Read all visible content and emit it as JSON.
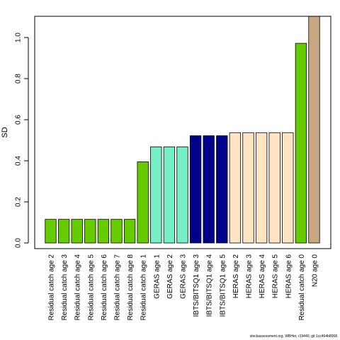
{
  "chart_data": {
    "type": "bar",
    "ylabel": "SD",
    "xlabel": "",
    "ylim": [
      0,
      1.1
    ],
    "yticks": [
      0.0,
      0.2,
      0.4,
      0.6,
      0.8,
      1.0
    ],
    "ytick_labels": [
      "0.0",
      "0.2",
      "0.4",
      "0.6",
      "0.8",
      "1.0"
    ],
    "grid": false,
    "categories": [
      "Residual catch age 2",
      "Residual catch age 3",
      "Residual catch age 4",
      "Residual catch age 5",
      "Residual catch age 6",
      "Residual catch age 7",
      "Residual catch age 8",
      "Residual catch age 1",
      "GERAS age 1",
      "GERAS age 2",
      "GERAS age 3",
      "IBTS/BITSQ1 age 3",
      "IBTS/BITSQ1 age 4",
      "IBTS/BITSQ1 age 5",
      "HERAS age 2",
      "HERAS age 3",
      "HERAS age 4",
      "HERAS age 5",
      "HERAS age 6",
      "Residual catch age 0",
      "N20 age 0"
    ],
    "values": [
      0.115,
      0.115,
      0.115,
      0.115,
      0.115,
      0.115,
      0.115,
      0.395,
      0.468,
      0.468,
      0.468,
      0.522,
      0.522,
      0.522,
      0.537,
      0.537,
      0.537,
      0.537,
      0.537,
      0.972,
      1.15
    ],
    "colors": [
      "#66CC00",
      "#66CC00",
      "#66CC00",
      "#66CC00",
      "#66CC00",
      "#66CC00",
      "#66CC00",
      "#66CC00",
      "#76EEC6",
      "#76EEC6",
      "#76EEC6",
      "#00008B",
      "#00008B",
      "#00008B",
      "#FFE4C4",
      "#FFE4C4",
      "#FFE4C4",
      "#FFE4C4",
      "#FFE4C4",
      "#66CC00",
      "#C8A682"
    ]
  },
  "footer": {
    "text": "stockassessment.org, WBHer, r19440, git:1cc464b8068"
  }
}
